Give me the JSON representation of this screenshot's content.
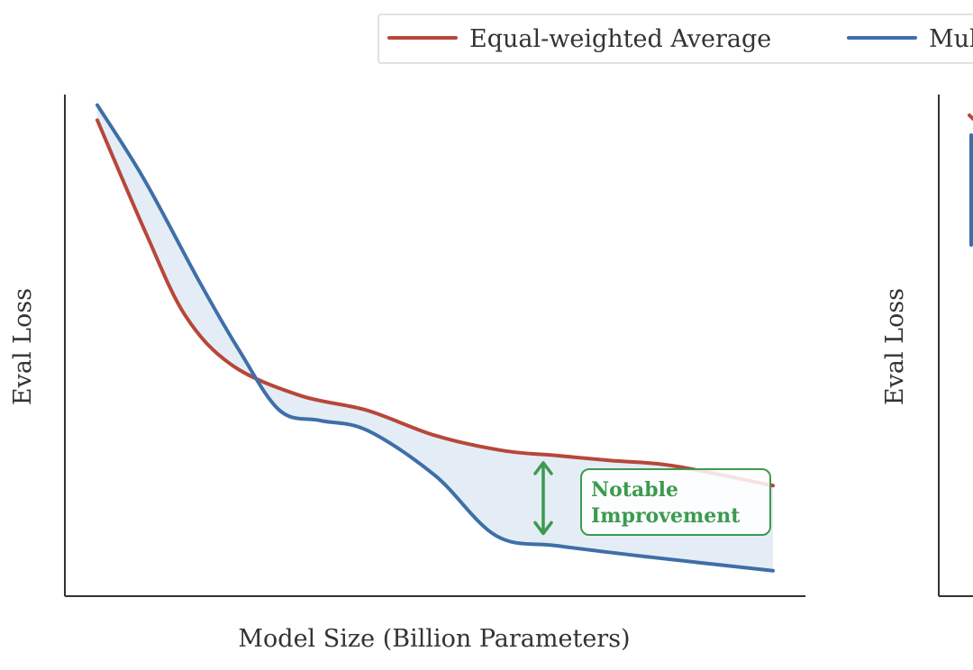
{
  "legend": {
    "entries": [
      {
        "label": "Equal-weighted Average",
        "color": "#b7473a"
      },
      {
        "label": "Mul",
        "color": "#3f6fa8"
      }
    ]
  },
  "chart_data": [
    {
      "type": "line",
      "title": "",
      "xlabel": "Model Size (Billion Parameters)",
      "ylabel": "Eval Loss",
      "x_ticks_shown": false,
      "y_ticks_shown": false,
      "grid": false,
      "legend_position": "top",
      "xlim": [
        0,
        1
      ],
      "ylim": [
        0,
        1
      ],
      "series": [
        {
          "name": "Equal-weighted Average",
          "color": "#b7473a",
          "x": [
            0.0,
            0.07,
            0.13,
            0.2,
            0.3,
            0.4,
            0.5,
            0.6,
            0.68,
            0.76,
            0.85,
            1.0
          ],
          "y": [
            0.94,
            0.72,
            0.55,
            0.45,
            0.39,
            0.36,
            0.31,
            0.28,
            0.27,
            0.26,
            0.25,
            0.21
          ]
        },
        {
          "name": "Mul",
          "color": "#3f6fa8",
          "x": [
            0.0,
            0.07,
            0.15,
            0.21,
            0.27,
            0.33,
            0.4,
            0.5,
            0.59,
            0.68,
            0.8,
            1.0
          ],
          "y": [
            0.97,
            0.82,
            0.62,
            0.48,
            0.36,
            0.34,
            0.32,
            0.23,
            0.11,
            0.09,
            0.07,
            0.04
          ]
        }
      ],
      "shaded_region": {
        "between": [
          "Equal-weighted Average",
          "Mul"
        ],
        "color": "#dbe7f3"
      },
      "annotation": {
        "text_line1": "Notable",
        "text_line2": "Improvement",
        "x": 0.66,
        "y_from": 0.27,
        "y_to": 0.1,
        "color": "#3d9a4f"
      }
    },
    {
      "type": "line",
      "title": "",
      "xlabel": "",
      "ylabel": "Eval Loss",
      "x_ticks_shown": false,
      "y_ticks_shown": false,
      "grid": false,
      "partial": true
    }
  ]
}
